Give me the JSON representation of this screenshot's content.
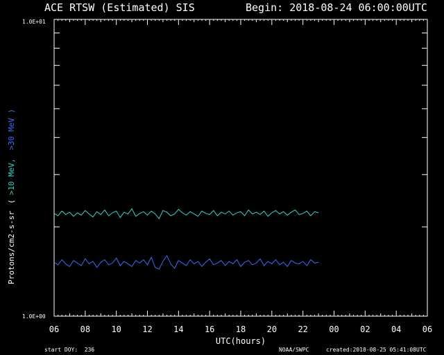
{
  "header": {
    "title": "ACE RTSW (Estimated) SIS",
    "begin": "Begin: 2018-08-24 06:00:00UTC"
  },
  "footer": {
    "start_doy": "start DOY:  236",
    "credit": "NOAA/SWPC",
    "created": "created:2018-08-25 05:41:08UTC"
  },
  "chart_data": {
    "type": "line",
    "xlabel": "UTC(hours)",
    "ylabel": "Protons/cm2-s-sr",
    "legend_open": "(",
    "legend_close": ")",
    "scale": "log",
    "ylim": [
      1.0,
      10.0
    ],
    "y_tick_labels": [
      "1.0E+01",
      "1.0E+00"
    ],
    "x_tick_labels": [
      "06",
      "08",
      "10",
      "12",
      "14",
      "16",
      "18",
      "20",
      "22",
      "00",
      "02",
      "04",
      "06"
    ],
    "xlim_hours": [
      0,
      24
    ],
    "grid": false,
    "colors": {
      "axes": "#ffffff",
      "background": "#000000"
    },
    "series": [
      {
        "name": ">10 MeV,",
        "color": "#33d6cc",
        "x": [
          0.0,
          0.25,
          0.5,
          0.75,
          1.0,
          1.25,
          1.5,
          1.75,
          2.0,
          2.25,
          2.5,
          2.75,
          3.0,
          3.25,
          3.5,
          3.75,
          4.0,
          4.25,
          4.5,
          4.75,
          5.0,
          5.25,
          5.5,
          5.75,
          6.0,
          6.25,
          6.5,
          6.75,
          7.0,
          7.25,
          7.5,
          7.75,
          8.0,
          8.25,
          8.5,
          8.75,
          9.0,
          9.25,
          9.5,
          9.75,
          10.0,
          10.25,
          10.5,
          10.75,
          11.0,
          11.25,
          11.5,
          11.75,
          12.0,
          12.25,
          12.5,
          12.75,
          13.0,
          13.25,
          13.5,
          13.75,
          14.0,
          14.25,
          14.5,
          14.75,
          15.0,
          15.25,
          15.5,
          15.75,
          16.0,
          16.25,
          16.5,
          16.75,
          17.0
        ],
        "y": [
          2.22,
          2.18,
          2.26,
          2.2,
          2.24,
          2.17,
          2.23,
          2.19,
          2.27,
          2.21,
          2.16,
          2.25,
          2.2,
          2.28,
          2.18,
          2.23,
          2.26,
          2.15,
          2.24,
          2.21,
          2.3,
          2.17,
          2.22,
          2.25,
          2.19,
          2.26,
          2.21,
          2.13,
          2.27,
          2.24,
          2.18,
          2.21,
          2.29,
          2.23,
          2.19,
          2.25,
          2.21,
          2.17,
          2.26,
          2.22,
          2.2,
          2.27,
          2.18,
          2.24,
          2.21,
          2.26,
          2.19,
          2.23,
          2.25,
          2.18,
          2.28,
          2.21,
          2.24,
          2.2,
          2.26,
          2.17,
          2.23,
          2.27,
          2.21,
          2.25,
          2.19,
          2.24,
          2.28,
          2.2,
          2.22,
          2.26,
          2.18,
          2.25,
          2.23
        ]
      },
      {
        "name": ">30 MeV )",
        "color": "#3a6cff",
        "x": [
          0.0,
          0.25,
          0.5,
          0.75,
          1.0,
          1.25,
          1.5,
          1.75,
          2.0,
          2.25,
          2.5,
          2.75,
          3.0,
          3.25,
          3.5,
          3.75,
          4.0,
          4.25,
          4.5,
          4.75,
          5.0,
          5.25,
          5.5,
          5.75,
          6.0,
          6.25,
          6.5,
          6.75,
          7.0,
          7.25,
          7.5,
          7.75,
          8.0,
          8.25,
          8.5,
          8.75,
          9.0,
          9.25,
          9.5,
          9.75,
          10.0,
          10.25,
          10.5,
          10.75,
          11.0,
          11.25,
          11.5,
          11.75,
          12.0,
          12.25,
          12.5,
          12.75,
          13.0,
          13.25,
          13.5,
          13.75,
          14.0,
          14.25,
          14.5,
          14.75,
          15.0,
          15.25,
          15.5,
          15.75,
          16.0,
          16.25,
          16.5,
          16.75,
          17.0
        ],
        "y": [
          1.52,
          1.49,
          1.55,
          1.5,
          1.47,
          1.54,
          1.51,
          1.48,
          1.56,
          1.5,
          1.53,
          1.46,
          1.52,
          1.55,
          1.49,
          1.51,
          1.57,
          1.48,
          1.53,
          1.5,
          1.47,
          1.54,
          1.51,
          1.55,
          1.49,
          1.58,
          1.46,
          1.44,
          1.53,
          1.6,
          1.5,
          1.45,
          1.54,
          1.51,
          1.48,
          1.55,
          1.5,
          1.53,
          1.47,
          1.52,
          1.56,
          1.49,
          1.51,
          1.54,
          1.48,
          1.53,
          1.5,
          1.55,
          1.47,
          1.52,
          1.54,
          1.49,
          1.51,
          1.56,
          1.48,
          1.53,
          1.5,
          1.55,
          1.49,
          1.52,
          1.47,
          1.54,
          1.51,
          1.5,
          1.53,
          1.48,
          1.55,
          1.51,
          1.52
        ]
      }
    ]
  }
}
